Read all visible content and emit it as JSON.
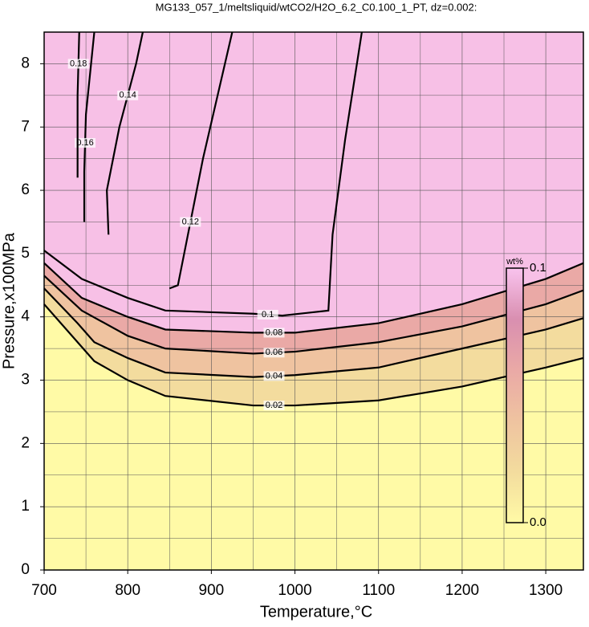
{
  "chart_data": {
    "type": "contour",
    "title": "MG133_057_1/meltsliquid/wtCO2/H2O_6.2_C0.100_1_PT, dz=0.002:",
    "x_label": "Temperature,°C",
    "y_label": "Pressure,x100MPa",
    "xlim": [
      700,
      1345
    ],
    "ylim": [
      0,
      8.5
    ],
    "xticks": [
      700,
      800,
      900,
      1000,
      1100,
      1200,
      1300
    ],
    "yticks": [
      0,
      1,
      2,
      3,
      4,
      5,
      6,
      7,
      8
    ],
    "xgrid": [
      750,
      850,
      950,
      1050,
      1150,
      1250
    ],
    "ygrid": [
      0.5,
      1.5,
      2.5,
      3.5,
      4.5,
      5.5,
      6.5,
      7.5
    ],
    "background": "#fffaa6",
    "contours": [
      {
        "level": 0.02,
        "color": "#f3dc9e",
        "x": [
          700,
          740,
          760,
          800,
          845,
          950,
          1000,
          1100,
          1200,
          1300,
          1345
        ],
        "y": [
          4.2,
          3.6,
          3.3,
          3.0,
          2.75,
          2.6,
          2.6,
          2.68,
          2.9,
          3.2,
          3.35
        ]
      },
      {
        "level": 0.04,
        "color": "#efc3a0",
        "x": [
          700,
          740,
          760,
          800,
          845,
          950,
          1000,
          1100,
          1200,
          1300,
          1345
        ],
        "y": [
          4.45,
          3.9,
          3.6,
          3.35,
          3.12,
          3.05,
          3.08,
          3.2,
          3.5,
          3.8,
          3.98
        ]
      },
      {
        "level": 0.06,
        "color": "#eaa9a6",
        "x": [
          700,
          745,
          800,
          845,
          950,
          1000,
          1100,
          1200,
          1300,
          1345
        ],
        "y": [
          4.65,
          4.1,
          3.7,
          3.5,
          3.42,
          3.45,
          3.6,
          3.85,
          4.2,
          4.42
        ]
      },
      {
        "level": 0.08,
        "color": "#f7c0e6",
        "x": [
          700,
          745,
          800,
          845,
          950,
          1000,
          1100,
          1200,
          1300,
          1345
        ],
        "y": [
          4.85,
          4.3,
          4.0,
          3.8,
          3.75,
          3.75,
          3.9,
          4.2,
          4.6,
          4.85
        ]
      },
      {
        "level": 0.1,
        "x": [
          700,
          745,
          800,
          845,
          950,
          985,
          1040,
          1045,
          1060,
          1080
        ],
        "y": [
          5.05,
          4.6,
          4.3,
          4.1,
          4.05,
          4.02,
          4.1,
          5.3,
          6.8,
          8.5
        ]
      },
      {
        "level": 0.12,
        "x": [
          850,
          860,
          890,
          925
        ],
        "y": [
          4.45,
          4.5,
          6.5,
          8.5
        ]
      },
      {
        "level": 0.14,
        "x": [
          777,
          775,
          790,
          810,
          818
        ],
        "y": [
          5.3,
          6.0,
          7.0,
          8.0,
          8.5
        ]
      },
      {
        "level": 0.16,
        "x": [
          748,
          748,
          750,
          760
        ],
        "y": [
          5.5,
          6.3,
          7.2,
          8.5
        ]
      },
      {
        "level": 0.18,
        "x": [
          740,
          740,
          742
        ],
        "y": [
          6.2,
          7.5,
          8.5
        ]
      }
    ],
    "colorbar": {
      "label": "wt%",
      "lim": [
        0,
        0.1
      ],
      "ticks": [
        {
          "value": 0.1,
          "label": "0.1"
        },
        {
          "value": 0,
          "label": "0.0"
        }
      ],
      "colors": [
        "#fffaa6",
        "#f3dc9e",
        "#efc3a0",
        "#eaa9a6",
        "#d98fb0",
        "#f9c3ee"
      ]
    }
  }
}
